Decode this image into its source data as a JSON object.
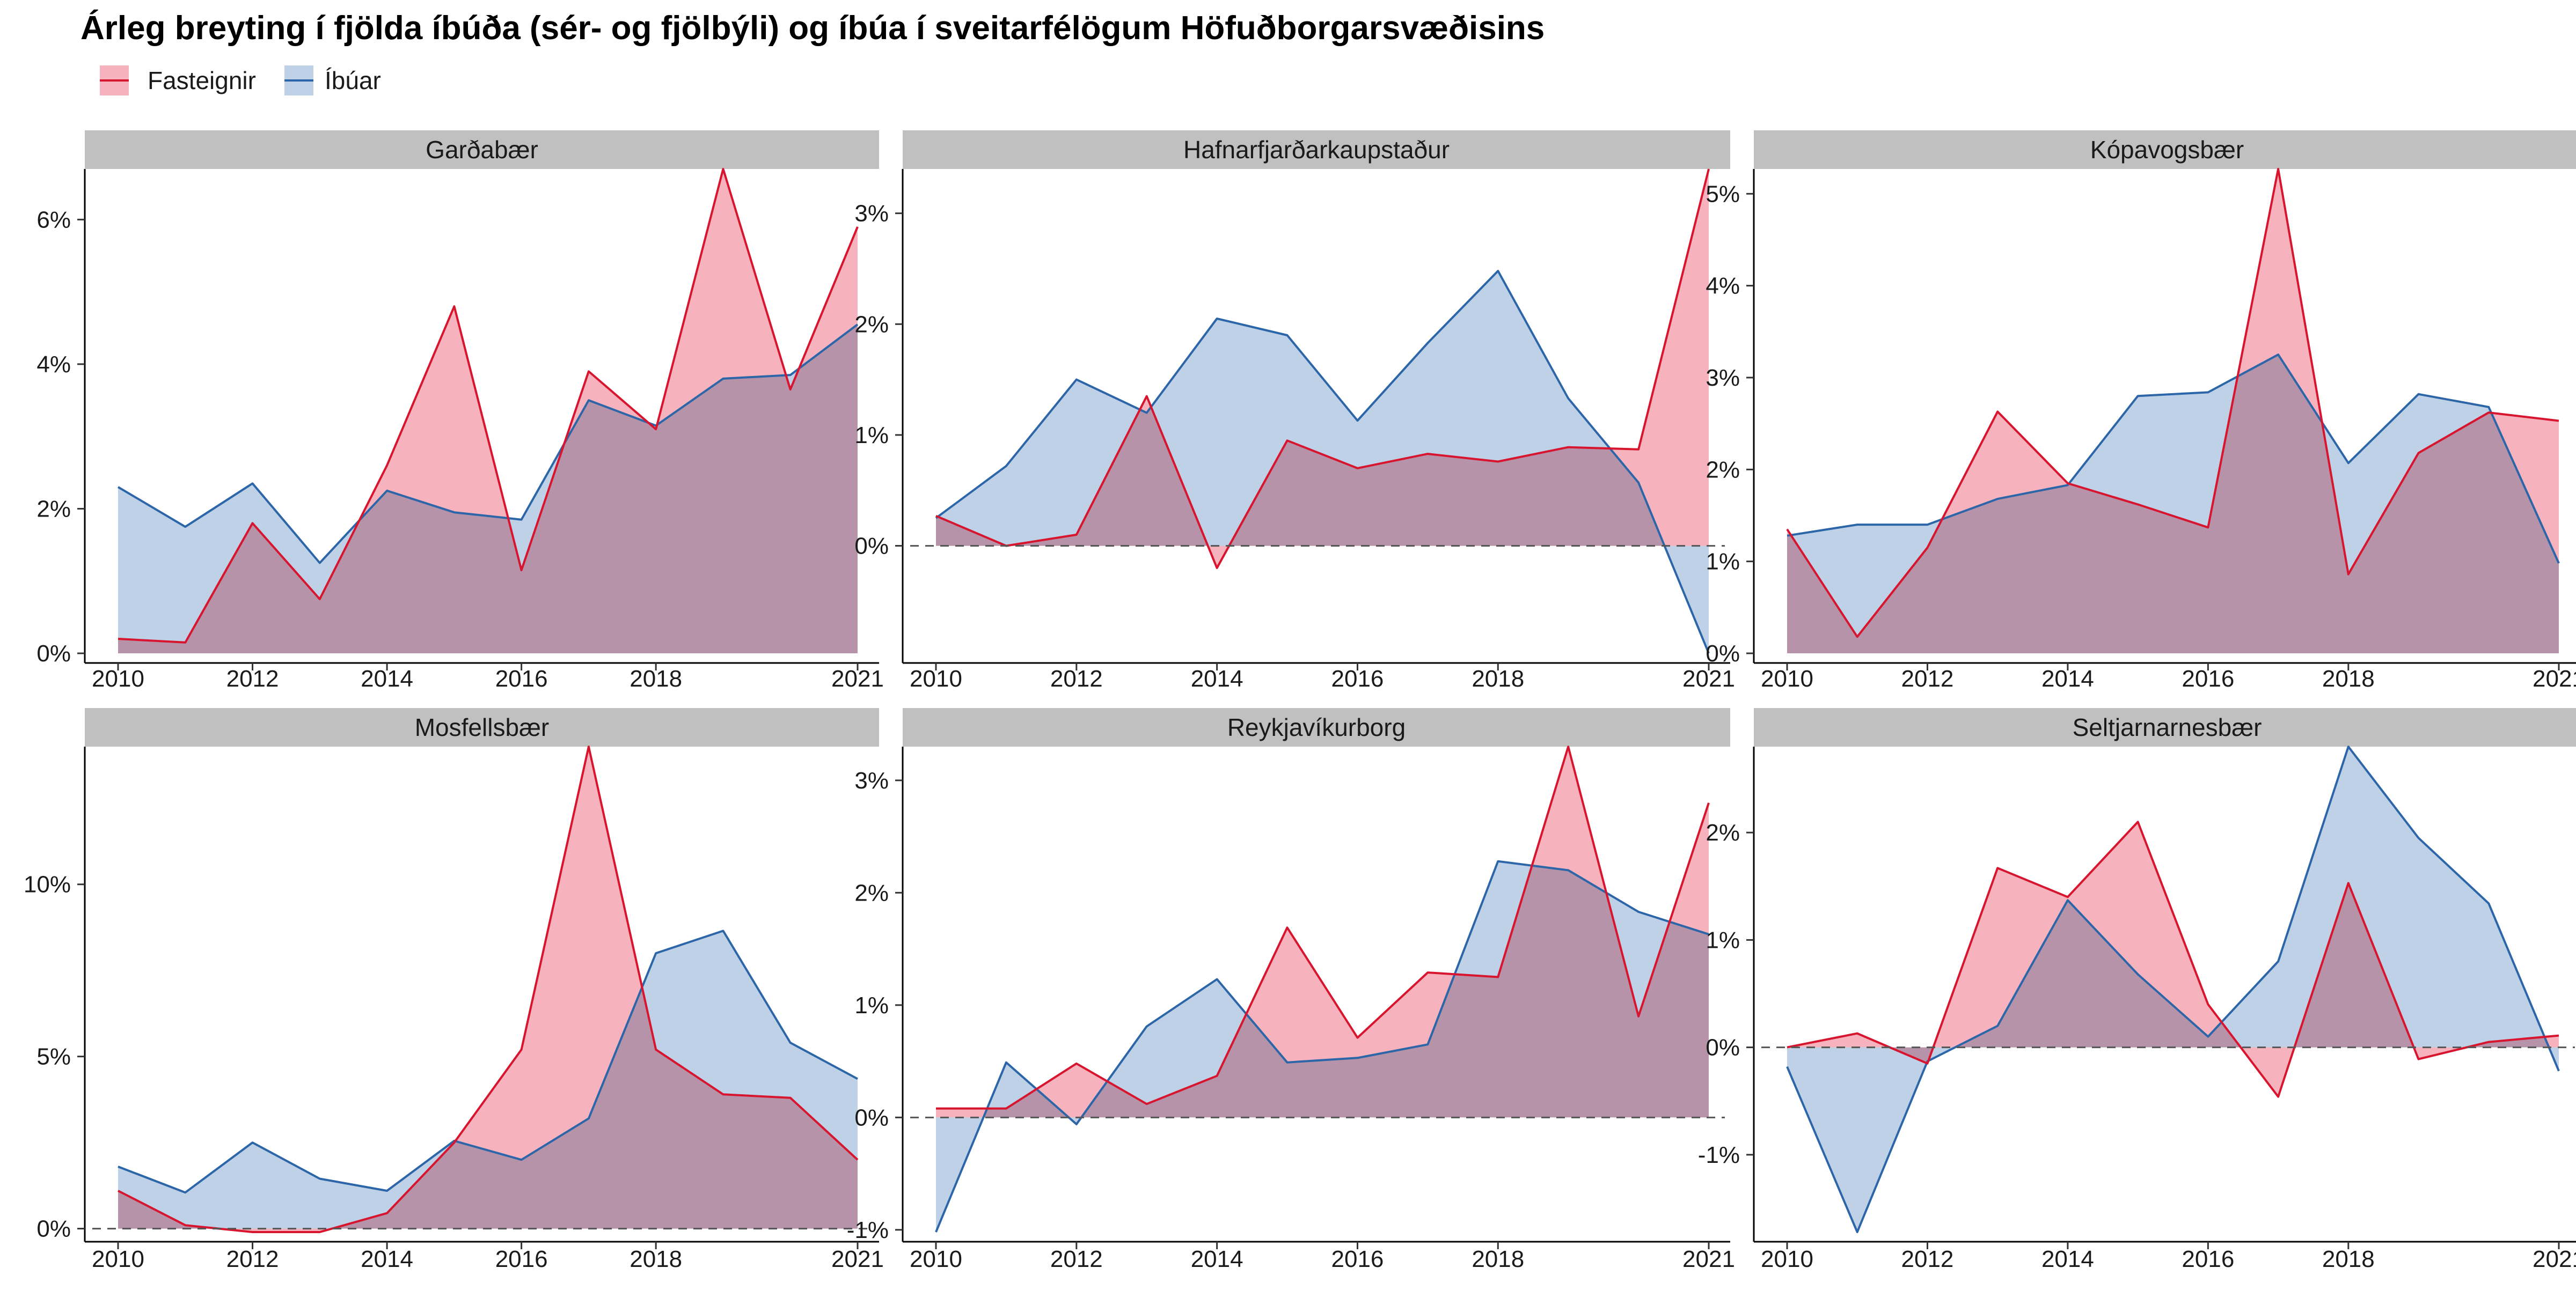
{
  "title": "Árleg breyting í fjölda íbúða (sér- og fjölbýli) og íbúa í sveitarfélögum Höfuðborgarsvæðisins",
  "legend": [
    {
      "name": "Fasteignir",
      "color": "#D7152E",
      "fill": "#F4A6B2"
    },
    {
      "name": "Íbúar",
      "color": "#2C66A8",
      "fill": "#B3C9E2"
    }
  ],
  "chart_data": [
    {
      "type": "area",
      "panel": "Garðabær",
      "x": [
        2010,
        2011,
        2012,
        2013,
        2014,
        2015,
        2016,
        2017,
        2018,
        2019,
        2020,
        2021
      ],
      "series": [
        {
          "name": "Fasteignir",
          "values": [
            0.2,
            0.15,
            1.8,
            0.75,
            2.6,
            4.8,
            1.15,
            3.9,
            3.1,
            6.7,
            3.65,
            5.9
          ]
        },
        {
          "name": "Íbúar",
          "values": [
            2.3,
            1.75,
            2.35,
            1.25,
            2.25,
            1.95,
            1.85,
            3.5,
            3.15,
            3.8,
            3.85,
            4.55
          ]
        }
      ],
      "xticks": [
        "2010",
        "2012",
        "2014",
        "2016",
        "2018",
        "2021"
      ],
      "yticks": [
        {
          "value": 0,
          "label": "0%"
        },
        {
          "value": 2,
          "label": "2%"
        },
        {
          "value": 4,
          "label": "4%"
        },
        {
          "value": 6,
          "label": "6%"
        }
      ],
      "ylim": [
        0,
        6.7
      ],
      "zero_line": false
    },
    {
      "type": "area",
      "panel": "Hafnarfjarðarkaupstaður",
      "x": [
        2010,
        2011,
        2012,
        2013,
        2014,
        2015,
        2016,
        2017,
        2018,
        2019,
        2020,
        2021
      ],
      "series": [
        {
          "name": "Fasteignir",
          "values": [
            0.27,
            0.0,
            0.1,
            1.35,
            -0.2,
            0.95,
            0.7,
            0.83,
            0.76,
            0.89,
            0.87,
            3.4
          ]
        },
        {
          "name": "Íbúar",
          "values": [
            0.25,
            0.72,
            1.5,
            1.2,
            2.05,
            1.9,
            1.13,
            1.83,
            2.48,
            1.33,
            0.57,
            -0.97
          ]
        }
      ],
      "xticks": [
        "2010",
        "2012",
        "2014",
        "2016",
        "2018",
        "2021"
      ],
      "yticks": [
        {
          "value": 0,
          "label": "0%"
        },
        {
          "value": 1,
          "label": "1%"
        },
        {
          "value": 2,
          "label": "2%"
        },
        {
          "value": 3,
          "label": "3%"
        }
      ],
      "ylim": [
        -0.97,
        3.4
      ],
      "zero_line": true
    },
    {
      "type": "area",
      "panel": "Kópavogsbær",
      "x": [
        2010,
        2011,
        2012,
        2013,
        2014,
        2015,
        2016,
        2017,
        2018,
        2019,
        2020,
        2021
      ],
      "series": [
        {
          "name": "Fasteignir",
          "values": [
            1.35,
            0.18,
            1.15,
            2.63,
            1.85,
            1.62,
            1.37,
            5.27,
            0.86,
            2.18,
            2.62,
            2.53
          ]
        },
        {
          "name": "Íbúar",
          "values": [
            1.28,
            1.4,
            1.4,
            1.68,
            1.83,
            2.8,
            2.84,
            3.25,
            2.07,
            2.82,
            2.68,
            0.98
          ]
        }
      ],
      "xticks": [
        "2010",
        "2012",
        "2014",
        "2016",
        "2018",
        "2021"
      ],
      "yticks": [
        {
          "value": 0,
          "label": "0%"
        },
        {
          "value": 1,
          "label": "1%"
        },
        {
          "value": 2,
          "label": "2%"
        },
        {
          "value": 3,
          "label": "3%"
        },
        {
          "value": 4,
          "label": "4%"
        },
        {
          "value": 5,
          "label": "5%"
        }
      ],
      "ylim": [
        0,
        5.27
      ],
      "zero_line": false
    },
    {
      "type": "area",
      "panel": "Mosfellsbær",
      "x": [
        2010,
        2011,
        2012,
        2013,
        2014,
        2015,
        2016,
        2017,
        2018,
        2019,
        2020,
        2021
      ],
      "series": [
        {
          "name": "Fasteignir",
          "values": [
            1.1,
            0.1,
            -0.1,
            -0.1,
            0.45,
            2.5,
            5.2,
            14.0,
            5.2,
            3.9,
            3.8,
            2.0
          ]
        },
        {
          "name": "Íbúar",
          "values": [
            1.8,
            1.05,
            2.5,
            1.45,
            1.1,
            2.55,
            2.0,
            3.2,
            8.0,
            8.65,
            5.4,
            4.35
          ]
        }
      ],
      "xticks": [
        "2010",
        "2012",
        "2014",
        "2016",
        "2018",
        "2021"
      ],
      "yticks": [
        {
          "value": 0,
          "label": "0%"
        },
        {
          "value": 5,
          "label": "5%"
        },
        {
          "value": 10,
          "label": "10%"
        }
      ],
      "ylim": [
        -0.1,
        14.0
      ],
      "zero_line": true
    },
    {
      "type": "area",
      "panel": "Reykjavíkurborg",
      "x": [
        2010,
        2011,
        2012,
        2013,
        2014,
        2015,
        2016,
        2017,
        2018,
        2019,
        2020,
        2021
      ],
      "series": [
        {
          "name": "Fasteignir",
          "values": [
            0.08,
            0.08,
            0.48,
            0.12,
            0.37,
            1.69,
            0.71,
            1.29,
            1.25,
            3.3,
            0.9,
            2.8
          ]
        },
        {
          "name": "Íbúar",
          "values": [
            -1.02,
            0.49,
            -0.06,
            0.81,
            1.23,
            0.49,
            0.53,
            0.65,
            2.28,
            2.2,
            1.83,
            1.63
          ]
        }
      ],
      "xticks": [
        "2010",
        "2012",
        "2014",
        "2016",
        "2018",
        "2021"
      ],
      "yticks": [
        {
          "value": -1,
          "label": "-1%"
        },
        {
          "value": 0,
          "label": "0%"
        },
        {
          "value": 1,
          "label": "1%"
        },
        {
          "value": 2,
          "label": "2%"
        },
        {
          "value": 3,
          "label": "3%"
        }
      ],
      "ylim": [
        -1.02,
        3.3
      ],
      "zero_line": true
    },
    {
      "type": "area",
      "panel": "Seltjarnarnesbær",
      "x": [
        2010,
        2011,
        2012,
        2013,
        2014,
        2015,
        2016,
        2017,
        2018,
        2019,
        2020,
        2021
      ],
      "series": [
        {
          "name": "Fasteignir",
          "values": [
            0.0,
            0.13,
            -0.15,
            1.67,
            1.4,
            2.1,
            0.4,
            -0.46,
            1.53,
            -0.11,
            0.05,
            0.11
          ]
        },
        {
          "name": "Íbúar",
          "values": [
            -0.18,
            -1.72,
            -0.13,
            0.2,
            1.37,
            0.68,
            0.1,
            0.8,
            2.8,
            1.95,
            1.34,
            -0.22
          ]
        }
      ],
      "xticks": [
        "2010",
        "2012",
        "2014",
        "2016",
        "2018",
        "2021"
      ],
      "yticks": [
        {
          "value": -1,
          "label": "-1%"
        },
        {
          "value": 0,
          "label": "0%"
        },
        {
          "value": 1,
          "label": "1%"
        },
        {
          "value": 2,
          "label": "2%"
        }
      ],
      "ylim": [
        -1.72,
        2.8
      ],
      "zero_line": true
    }
  ]
}
